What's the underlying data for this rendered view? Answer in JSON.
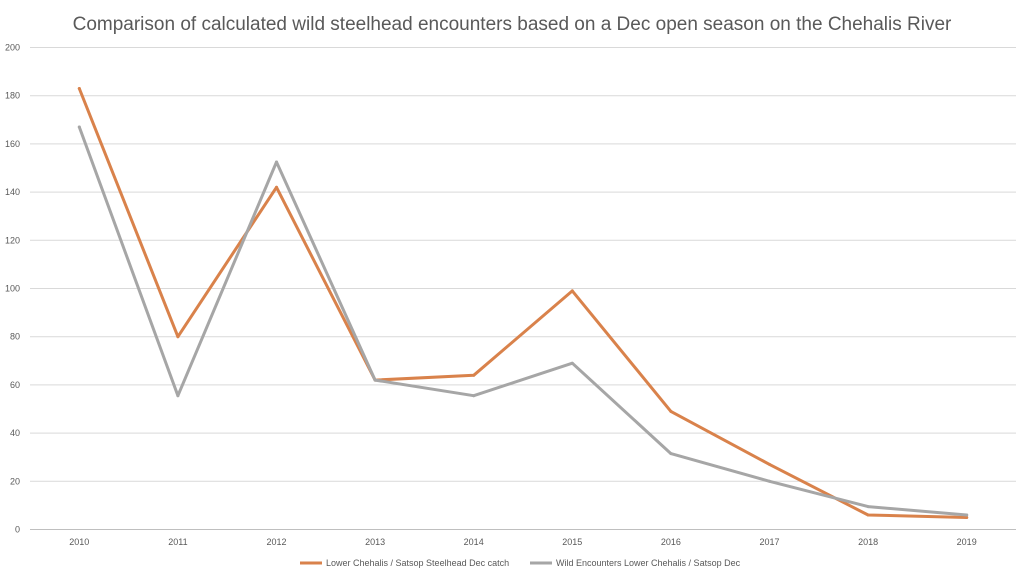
{
  "chart_data": {
    "type": "line",
    "title": "Comparison of calculated wild steelhead encounters based on a Dec open season on the Chehalis River",
    "xlabel": "",
    "ylabel": "",
    "categories": [
      "2010",
      "2011",
      "2012",
      "2013",
      "2014",
      "2015",
      "2016",
      "2017",
      "2018",
      "2019"
    ],
    "ylim": [
      0,
      200
    ],
    "yticks": [
      0,
      20,
      40,
      60,
      80,
      100,
      120,
      140,
      160,
      180,
      200
    ],
    "grid": true,
    "legend_position": "bottom",
    "series": [
      {
        "name": "Lower Chehalis / Satsop Steelhead Dec catch",
        "color": "#d9824b",
        "values": [
          183,
          80,
          142,
          62,
          64,
          99,
          49,
          27,
          6,
          5
        ]
      },
      {
        "name": "Wild Encounters Lower Chehalis / Satsop Dec",
        "color": "#a6a6a6",
        "values": [
          167,
          55.5,
          152.5,
          62,
          55.5,
          69,
          31.5,
          20,
          9.5,
          6
        ]
      }
    ]
  }
}
